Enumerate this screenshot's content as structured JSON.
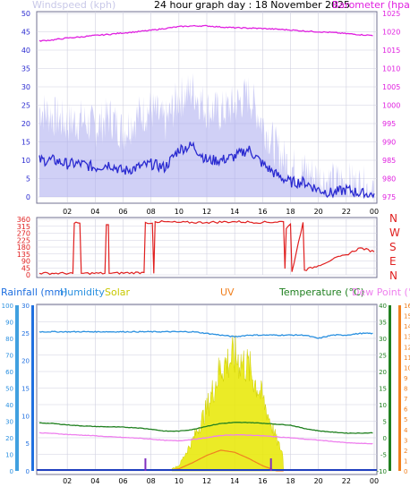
{
  "header": {
    "title": "24 hour graph day : 18 November 2025",
    "wind_label": "Windspeed (kph)",
    "baro_label": "Barometer (hpa)"
  },
  "direction_letters": [
    "N",
    "W",
    "S",
    "E",
    "N"
  ],
  "bottom_legend": {
    "rainfall": "Rainfall (mm)",
    "humidity": "Humidity",
    "solar": "Solar",
    "uv": "UV",
    "temperature": "Temperature (°C)",
    "dewpoint": "Dew Point (°C)"
  },
  "colors": {
    "windspeed": "#2a2ad0",
    "gust": "#aaaaee",
    "barometer": "#e020e0",
    "direction": "#e02020",
    "humidity": "#2a90e0",
    "temperature": "#208020",
    "dewpoint": "#ee80ee",
    "solar": "#e8e800",
    "uv": "#f08020",
    "rainfall": "#2070e0",
    "grid": "#d0d0e0"
  },
  "chart_data": [
    {
      "type": "line",
      "title": "24 hour graph day : 18 November 2025",
      "x_ticks": [
        "02",
        "04",
        "06",
        "08",
        "10",
        "12",
        "14",
        "16",
        "18",
        "20",
        "22",
        "00"
      ],
      "y_left": {
        "label": "Windspeed (kph)",
        "ticks": [
          0,
          5,
          10,
          15,
          20,
          25,
          30,
          35,
          40,
          45,
          50
        ],
        "range": [
          0,
          50
        ]
      },
      "y_right": {
        "label": "Barometer (hpa)",
        "ticks": [
          975,
          980,
          985,
          990,
          995,
          1000,
          1005,
          1010,
          1015,
          1020,
          1025
        ],
        "range": [
          975,
          1025
        ]
      },
      "x_hours": [
        0,
        1,
        2,
        3,
        4,
        5,
        6,
        7,
        8,
        9,
        10,
        11,
        12,
        13,
        14,
        15,
        16,
        17,
        18,
        19,
        20,
        21,
        22,
        23,
        24
      ],
      "series": [
        {
          "name": "Windspeed (kph)",
          "axis": "left",
          "values": [
            10,
            10,
            9,
            9,
            8,
            9,
            7,
            8,
            9,
            8,
            13,
            14,
            10,
            10,
            11,
            13,
            9,
            6,
            4,
            4,
            2,
            1,
            2,
            1,
            0.5
          ]
        },
        {
          "name": "Gust",
          "axis": "left",
          "values": [
            24,
            22,
            20,
            21,
            19,
            22,
            18,
            22,
            24,
            20,
            27,
            29,
            24,
            23,
            25,
            28,
            20,
            13,
            8,
            7,
            5,
            4,
            4,
            3,
            2
          ]
        },
        {
          "name": "Barometer (hpa)",
          "axis": "right",
          "values": [
            1017.5,
            1017.8,
            1018.3,
            1018.6,
            1019.0,
            1019.3,
            1019.7,
            1020.0,
            1020.4,
            1020.9,
            1021.4,
            1021.6,
            1021.6,
            1021.3,
            1021.1,
            1021.0,
            1020.9,
            1020.7,
            1020.5,
            1020.2,
            1020.0,
            1019.8,
            1019.5,
            1019.2,
            1019.0
          ]
        }
      ]
    },
    {
      "type": "line",
      "y_left": {
        "ticks": [
          0,
          45,
          90,
          135,
          180,
          225,
          270,
          315,
          360
        ],
        "range": [
          0,
          360
        ]
      },
      "x_ticks": [
        "02",
        "04",
        "06",
        "08",
        "10",
        "12",
        "14",
        "16",
        "18",
        "20",
        "22",
        "00"
      ],
      "series": [
        {
          "name": "Wind direction",
          "points": [
            [
              0,
              10
            ],
            [
              2.4,
              10
            ],
            [
              2.5,
              335
            ],
            [
              2.9,
              335
            ],
            [
              3.0,
              10
            ],
            [
              4.7,
              10
            ],
            [
              4.8,
              325
            ],
            [
              4.95,
              325
            ],
            [
              5.0,
              10
            ],
            [
              7.5,
              15
            ],
            [
              7.6,
              340
            ],
            [
              8.1,
              335
            ],
            [
              8.2,
              10
            ],
            [
              8.3,
              345
            ],
            [
              10.0,
              340
            ],
            [
              12.0,
              340
            ],
            [
              14.0,
              345
            ],
            [
              16.0,
              340
            ],
            [
              17.5,
              345
            ],
            [
              17.6,
              40
            ],
            [
              17.7,
              300
            ],
            [
              18.0,
              330
            ],
            [
              18.1,
              20
            ],
            [
              18.9,
              340
            ],
            [
              19.0,
              30
            ],
            [
              20,
              60
            ],
            [
              21,
              100
            ],
            [
              22,
              130
            ],
            [
              23,
              175
            ],
            [
              24,
              150
            ]
          ]
        }
      ]
    },
    {
      "type": "line",
      "x_ticks": [
        "02",
        "04",
        "06",
        "08",
        "10",
        "12",
        "14",
        "16",
        "18",
        "20",
        "22",
        "00"
      ],
      "axes": {
        "rainfall_mm": [
          0,
          5,
          10,
          15,
          20,
          25,
          30
        ],
        "humidity_pct": [
          0,
          10,
          20,
          30,
          40,
          50,
          60,
          70,
          80,
          90,
          100
        ],
        "temperature_c": [
          -10,
          -5,
          0,
          5,
          10,
          15,
          20,
          25,
          30,
          35,
          40
        ],
        "uv": [
          0,
          1,
          2,
          3,
          4,
          5,
          6,
          7,
          8,
          9,
          10,
          11,
          12,
          13,
          14,
          15,
          16
        ]
      },
      "x_hours": [
        0,
        1,
        2,
        3,
        4,
        5,
        6,
        7,
        8,
        9,
        10,
        11,
        12,
        13,
        14,
        15,
        16,
        17,
        18,
        19,
        20,
        21,
        22,
        23,
        24
      ],
      "series": [
        {
          "name": "Humidity",
          "axis": "humidity_pct",
          "values": [
            84,
            84,
            84,
            84,
            84,
            84,
            84,
            84,
            84,
            84,
            84,
            84,
            83,
            82,
            81,
            82,
            82,
            82,
            82,
            82,
            80,
            82,
            82,
            83,
            83
          ]
        },
        {
          "name": "Temperature (°C)",
          "axis": "temperature_c",
          "values": [
            4.5,
            4.3,
            3.9,
            3.6,
            3.4,
            3.3,
            3.2,
            3.0,
            2.6,
            2.0,
            2.0,
            2.5,
            3.5,
            4.3,
            4.6,
            4.6,
            4.4,
            4.1,
            3.8,
            2.8,
            2.1,
            1.7,
            1.4,
            1.4,
            1.5
          ]
        },
        {
          "name": "Dew Point (°C)",
          "axis": "temperature_c",
          "values": [
            1.5,
            1.3,
            1.0,
            0.8,
            0.6,
            0.3,
            0.1,
            -0.1,
            -0.4,
            -0.8,
            -0.9,
            -0.5,
            0.0,
            0.7,
            0.9,
            0.8,
            0.6,
            0.3,
            0.0,
            -0.4,
            -0.7,
            -1.1,
            -1.5,
            -1.7,
            -1.8
          ]
        },
        {
          "name": "Solar",
          "axis": "uv",
          "values": [
            0,
            0,
            0,
            0,
            0,
            0,
            0,
            0,
            0,
            0,
            0.5,
            3,
            6,
            10,
            11,
            10,
            7,
            3,
            0,
            0,
            0,
            0,
            0,
            0,
            0
          ]
        },
        {
          "name": "UV",
          "axis": "uv",
          "values": [
            0,
            0,
            0,
            0,
            0,
            0,
            0,
            0,
            0,
            0,
            0.2,
            0.8,
            1.5,
            2.0,
            1.8,
            1.2,
            0.5,
            0,
            0,
            0,
            0,
            0,
            0,
            0,
            0
          ]
        },
        {
          "name": "Rainfall (mm)",
          "axis": "rainfall_mm",
          "values": [
            0,
            0,
            0,
            0,
            0,
            0,
            0,
            0,
            0,
            0,
            0,
            0,
            0,
            0,
            0,
            0,
            0,
            0,
            0,
            0,
            0,
            0,
            0,
            0,
            0
          ]
        }
      ]
    }
  ]
}
